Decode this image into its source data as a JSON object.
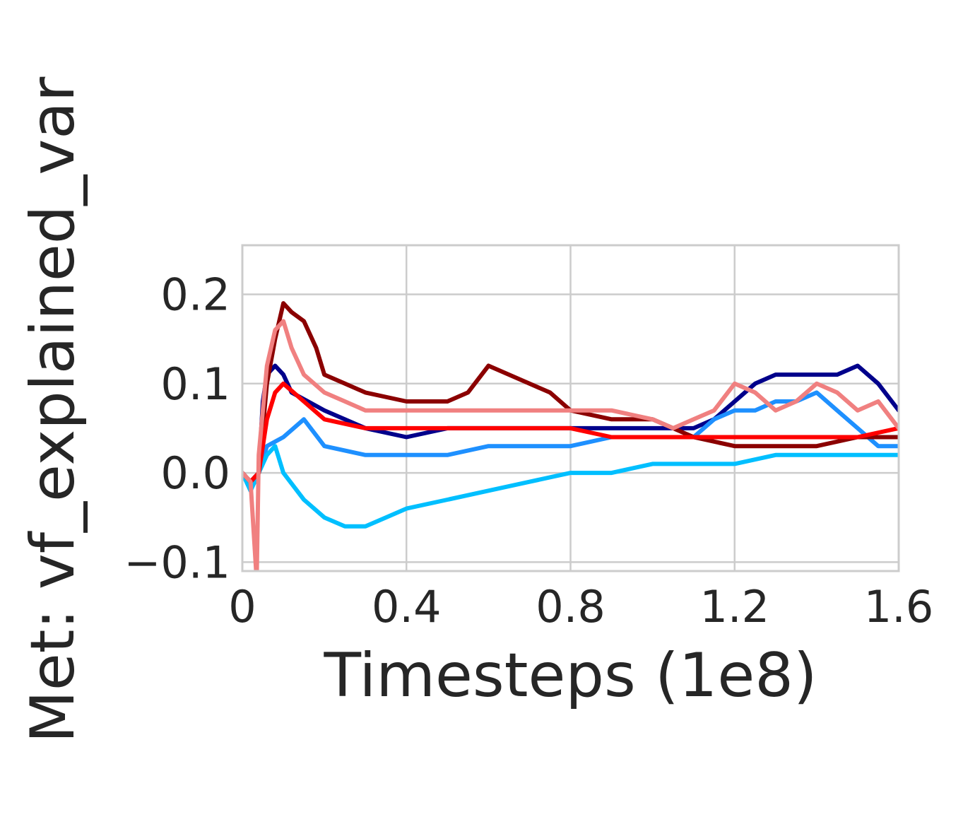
{
  "chart_data": {
    "type": "line",
    "xlabel": "Timesteps (1e8)",
    "ylabel": "Met: vf_explained_var",
    "xlim": [
      0,
      1.6
    ],
    "ylim": [
      -0.11,
      0.255
    ],
    "xticks": [
      0,
      0.4,
      0.8,
      1.2,
      1.6
    ],
    "xtick_labels": [
      "0",
      "0.4",
      "0.8",
      "1.2",
      "1.6"
    ],
    "yticks": [
      -0.1,
      0.0,
      0.1,
      0.2
    ],
    "ytick_labels": [
      "−0.1",
      "0.0",
      "0.1",
      "0.2"
    ],
    "grid": true,
    "legend": "none",
    "series": [
      {
        "color": "#00008b",
        "x": [
          0,
          0.02,
          0.04,
          0.05,
          0.06,
          0.08,
          0.1,
          0.12,
          0.16,
          0.2,
          0.3,
          0.4,
          0.5,
          0.6,
          0.7,
          0.8,
          0.9,
          1.0,
          1.1,
          1.15,
          1.2,
          1.25,
          1.3,
          1.35,
          1.4,
          1.45,
          1.5,
          1.55,
          1.6
        ],
        "y": [
          0.0,
          -0.01,
          0.0,
          0.08,
          0.11,
          0.12,
          0.11,
          0.09,
          0.08,
          0.07,
          0.05,
          0.04,
          0.05,
          0.05,
          0.05,
          0.05,
          0.05,
          0.05,
          0.05,
          0.06,
          0.08,
          0.1,
          0.11,
          0.11,
          0.11,
          0.11,
          0.12,
          0.1,
          0.07
        ]
      },
      {
        "color": "#1e90ff",
        "x": [
          0,
          0.02,
          0.04,
          0.06,
          0.1,
          0.15,
          0.2,
          0.3,
          0.4,
          0.5,
          0.6,
          0.7,
          0.8,
          0.9,
          1.0,
          1.1,
          1.15,
          1.2,
          1.25,
          1.3,
          1.35,
          1.4,
          1.45,
          1.5,
          1.55,
          1.6
        ],
        "y": [
          0.0,
          -0.02,
          0.0,
          0.03,
          0.04,
          0.06,
          0.03,
          0.02,
          0.02,
          0.02,
          0.03,
          0.03,
          0.03,
          0.04,
          0.04,
          0.04,
          0.06,
          0.07,
          0.07,
          0.08,
          0.08,
          0.09,
          0.07,
          0.05,
          0.03,
          0.03
        ]
      },
      {
        "color": "#00bfff",
        "x": [
          0,
          0.02,
          0.04,
          0.06,
          0.08,
          0.1,
          0.15,
          0.2,
          0.25,
          0.3,
          0.35,
          0.4,
          0.5,
          0.6,
          0.7,
          0.8,
          0.9,
          1.0,
          1.1,
          1.2,
          1.3,
          1.4,
          1.5,
          1.6
        ],
        "y": [
          0.0,
          -0.02,
          0.0,
          0.02,
          0.03,
          0.0,
          -0.03,
          -0.05,
          -0.06,
          -0.06,
          -0.05,
          -0.04,
          -0.03,
          -0.02,
          -0.01,
          0.0,
          0.0,
          0.01,
          0.01,
          0.01,
          0.02,
          0.02,
          0.02,
          0.02
        ]
      },
      {
        "color": "#8b0000",
        "x": [
          0,
          0.02,
          0.04,
          0.06,
          0.08,
          0.1,
          0.12,
          0.15,
          0.18,
          0.2,
          0.25,
          0.3,
          0.4,
          0.5,
          0.55,
          0.6,
          0.65,
          0.7,
          0.75,
          0.8,
          0.9,
          1.0,
          1.05,
          1.1,
          1.2,
          1.3,
          1.4,
          1.5,
          1.6
        ],
        "y": [
          0.0,
          -0.01,
          0.0,
          0.1,
          0.15,
          0.19,
          0.18,
          0.17,
          0.14,
          0.11,
          0.1,
          0.09,
          0.08,
          0.08,
          0.09,
          0.12,
          0.11,
          0.1,
          0.09,
          0.07,
          0.06,
          0.06,
          0.05,
          0.04,
          0.03,
          0.03,
          0.03,
          0.04,
          0.04
        ]
      },
      {
        "color": "#ff0000",
        "x": [
          0,
          0.02,
          0.04,
          0.06,
          0.08,
          0.1,
          0.15,
          0.2,
          0.3,
          0.4,
          0.5,
          0.6,
          0.7,
          0.8,
          0.9,
          1.0,
          1.1,
          1.2,
          1.3,
          1.4,
          1.5,
          1.6
        ],
        "y": [
          0.0,
          -0.01,
          0.0,
          0.06,
          0.09,
          0.1,
          0.08,
          0.06,
          0.05,
          0.05,
          0.05,
          0.05,
          0.05,
          0.05,
          0.04,
          0.04,
          0.04,
          0.04,
          0.04,
          0.04,
          0.04,
          0.05
        ]
      },
      {
        "color": "#f08080",
        "x": [
          0,
          0.02,
          0.035,
          0.04,
          0.05,
          0.06,
          0.08,
          0.1,
          0.12,
          0.15,
          0.2,
          0.25,
          0.3,
          0.35,
          0.4,
          0.45,
          0.5,
          0.55,
          0.6,
          0.7,
          0.8,
          0.9,
          1.0,
          1.05,
          1.1,
          1.15,
          1.2,
          1.25,
          1.3,
          1.35,
          1.4,
          1.45,
          1.5,
          1.55,
          1.6
        ],
        "y": [
          0.0,
          -0.01,
          -0.12,
          0.02,
          0.07,
          0.12,
          0.16,
          0.17,
          0.14,
          0.11,
          0.09,
          0.08,
          0.07,
          0.07,
          0.07,
          0.07,
          0.07,
          0.07,
          0.07,
          0.07,
          0.07,
          0.07,
          0.06,
          0.05,
          0.06,
          0.07,
          0.1,
          0.09,
          0.07,
          0.08,
          0.1,
          0.09,
          0.07,
          0.08,
          0.05
        ]
      }
    ]
  }
}
